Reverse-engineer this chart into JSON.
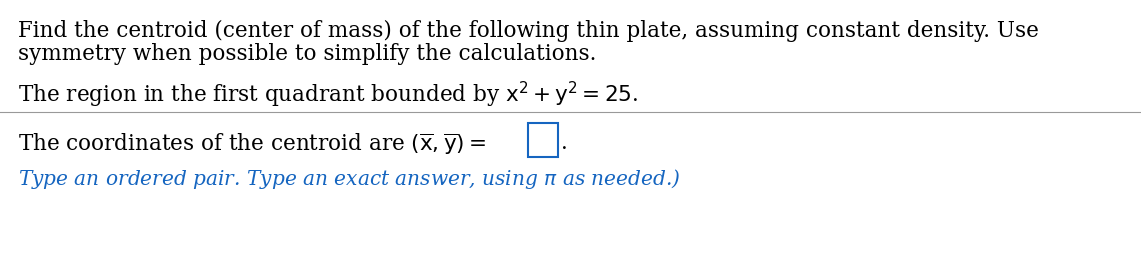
{
  "bg_color": "#ffffff",
  "text_color": "#000000",
  "blue_color": "#1565c0",
  "line1": "Find the centroid (center of mass) of the following thin plate, assuming constant density. Use",
  "line2": "symmetry when possible to simplify the calculations.",
  "line3_math": "The region in the first quadrant bounded by $\\mathrm{x}^2+\\mathrm{y}^2=25$.",
  "line4_pre": "The coordinates of the centroid are $(\\overline{\\mathrm{x}},\\overline{\\mathrm{y}})=$",
  "line4_blue": "Type an ordered pair. Type an exact answer, using $\\pi$ as needed.)",
  "font_size_main": 15.5,
  "font_size_blue": 14.5
}
